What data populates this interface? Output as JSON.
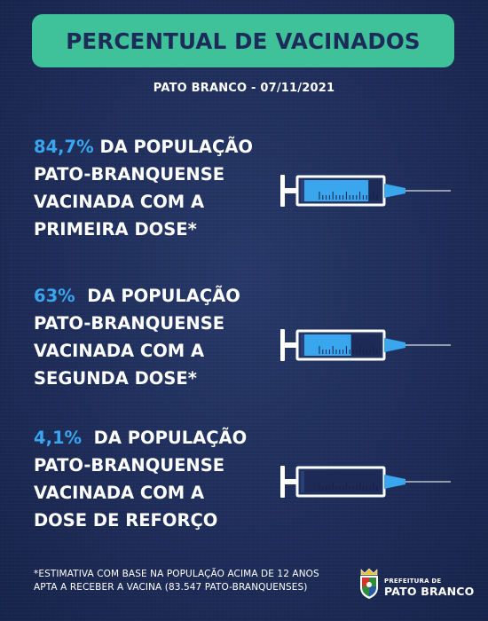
{
  "header": {
    "title": "PERCENTUAL DE VACINADOS",
    "subtitle": "PATO BRANCO - 07/11/2021"
  },
  "stats": [
    {
      "percent": "84,7%",
      "line1_rest": " DA POPULAÇÃO",
      "line2": "PATO-BRANQUENSE",
      "line3": "VACINADA COM A",
      "line4": "PRIMEIRA DOSE*",
      "fill_fraction": 0.847
    },
    {
      "percent": "63%",
      "line1_rest": "  DA POPULAÇÃO",
      "line2": "PATO-BRANQUENSE",
      "line3": "VACINADA COM A",
      "line4": "SEGUNDA DOSE*",
      "fill_fraction": 0.63
    },
    {
      "percent": "4,1%",
      "line1_rest": "  DA POPULAÇÃO",
      "line2": "PATO-BRANQUENSE",
      "line3": "VACINADA COM A",
      "line4": "DOSE DE REFORÇO",
      "fill_fraction": 0.041
    }
  ],
  "footnote": {
    "line1": "*ESTIMATIVA COM BASE NA POPULAÇÃO ACIMA DE 12 ANOS",
    "line2": "APTA A RECEBER A VACINA (83.547 PATO-BRANQUENSES)"
  },
  "logo": {
    "small": "PREFEITURA DE",
    "big": "PATO BRANCO"
  },
  "colors": {
    "background": "#1e2d59",
    "banner": "#3fc29a",
    "accent_blue": "#3aa6ee",
    "text": "#ffffff"
  }
}
